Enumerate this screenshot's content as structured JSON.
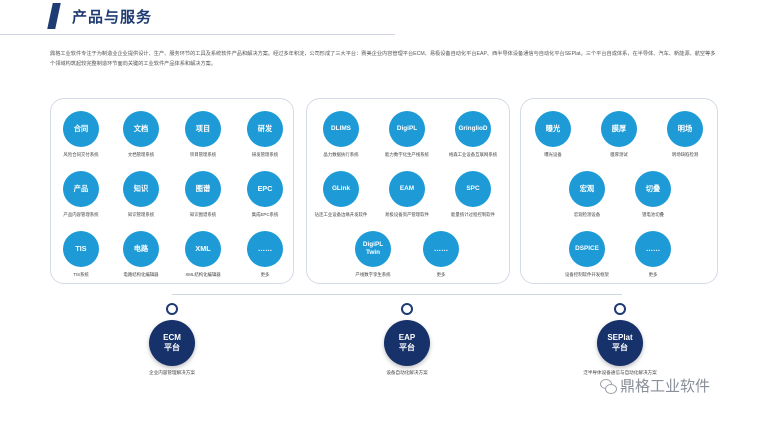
{
  "header": {
    "title": "产品与服务"
  },
  "intro": "鼎格工业软件专注于为制造业企业提供设计、生产、服务环节的工具及系统软件产品和解决方案。经过多年积淀，公司形成了三大平台：赛美企业内容管理平台ECM、易极设备自动化平台EAP、西半导体设备通信与自动化平台SEPlat。三个平台自成体系，在半导体、汽车、新能源、航空等多个领域构筑起较完整制造环节面向关键的工业软件产品体系和解决方案。",
  "panels": [
    {
      "items": [
        {
          "label": "合同",
          "caption": "风险合同交付系统"
        },
        {
          "label": "文档",
          "caption": "文档管理系统"
        },
        {
          "label": "项目",
          "caption": "项目管理系统"
        },
        {
          "label": "研发",
          "caption": "研发管理系统"
        },
        {
          "label": "产品",
          "caption": "产品内容管理系统"
        },
        {
          "label": "知识",
          "caption": "知识管理系统"
        },
        {
          "label": "图谱",
          "caption": "知识图谱系统"
        },
        {
          "label": "EPC",
          "caption": "集成EPC系统"
        },
        {
          "label": "TIS",
          "caption": "TIS系统"
        },
        {
          "label": "电路",
          "caption": "电路结构化编辑器"
        },
        {
          "label": "XML",
          "caption": "XML结构化编辑器"
        },
        {
          "label": "……",
          "caption": "更多"
        }
      ]
    },
    {
      "items": [
        {
          "label": "DLIMS",
          "caption": "晶力数据执行系统"
        },
        {
          "label": "DigiPL",
          "caption": "能力数字化生产线系统"
        },
        {
          "label": "GringlioD",
          "caption": "格森工业设备互联网系统"
        },
        {
          "label": "GLink",
          "caption": "钻连工业设备边缘开发软件"
        },
        {
          "label": "EAM",
          "caption": "易极设备资产管理软件"
        },
        {
          "label": "SPC",
          "caption": "能量统计过程控制软件"
        },
        {
          "label": "DigiPL\nTwin",
          "caption": "产线数字孪生系统"
        },
        {
          "label": "……",
          "caption": "更多"
        }
      ]
    },
    {
      "items": [
        {
          "label": "曝光",
          "caption": "曝光设备"
        },
        {
          "label": "膜厚",
          "caption": "膜厚测试"
        },
        {
          "label": "明场",
          "caption": "明场缺陷检测"
        },
        {
          "label": "宏观",
          "caption": "宏观检测设备"
        },
        {
          "label": "切叠",
          "caption": "锂电池切叠"
        },
        {
          "label": "DSPICE",
          "caption": "设备控制软件开发框架"
        },
        {
          "label": "……",
          "caption": "更多"
        }
      ]
    }
  ],
  "platforms": [
    {
      "name": "ECM\n平台",
      "desc": "企业内容管理解决方案"
    },
    {
      "name": "EAP\n平台",
      "desc": "设备自动化解决方案"
    },
    {
      "name": "SEPlat\n平台",
      "desc": "泛半导体设备通信与自动化解决方案"
    }
  ],
  "watermark": {
    "text": "鼎格工业软件",
    "icon": "wechat-icon"
  },
  "colors": {
    "accent": "#1e9bd7",
    "navy": "#1f3b73",
    "platform": "#17316b"
  }
}
